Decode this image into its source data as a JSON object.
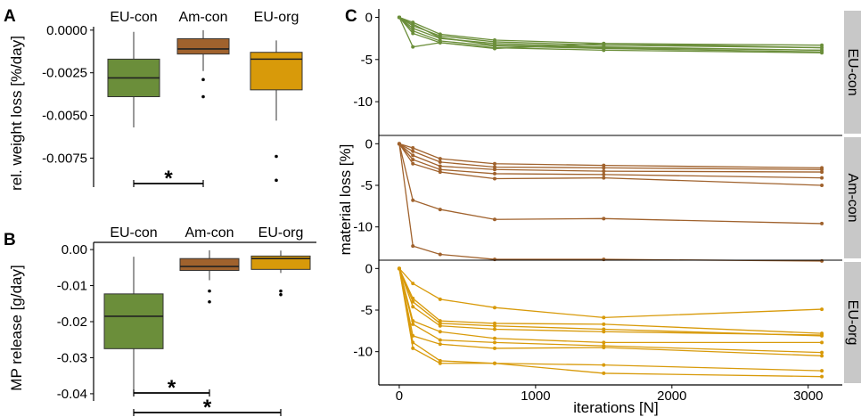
{
  "panels": {
    "A": {
      "label": "A",
      "ylabel": "rel. weight loss [%/day]",
      "categories": [
        "EU-con",
        "Am-con",
        "EU-org"
      ],
      "colors": [
        "#6b8e3a",
        "#a0622d",
        "#d89a0a"
      ],
      "yticks": [
        "0.0000",
        "-0.0025",
        "-0.0050",
        "-0.0075"
      ],
      "significance": [
        "*"
      ]
    },
    "B": {
      "label": "B",
      "ylabel": "MP release [g/day]",
      "categories": [
        "EU-con",
        "Am-con",
        "EU-org"
      ],
      "colors": [
        "#6b8e3a",
        "#a0622d",
        "#d89a0a"
      ],
      "yticks": [
        "0.00",
        "-0.01",
        "-0.02",
        "-0.03",
        "-0.04"
      ],
      "significance": [
        "*",
        "*"
      ]
    },
    "C": {
      "label": "C",
      "ylabel": "material loss [%]",
      "xlabel": "iterations [N]",
      "xticks": [
        "0",
        "1000",
        "2000",
        "3000"
      ],
      "yticks": [
        "0",
        "-5",
        "-10"
      ],
      "facets": [
        "EU-con",
        "Am-con",
        "EU-org"
      ],
      "colors": [
        "#6b8e3a",
        "#a0622d",
        "#d89a0a"
      ],
      "strip_color": "#c8c8c8"
    }
  },
  "chart_data": [
    {
      "type": "box",
      "panel": "A",
      "ylabel": "rel. weight loss [%/day]",
      "ylim": [
        -0.0092,
        0.0002
      ],
      "categories": [
        "EU-con",
        "Am-con",
        "EU-org"
      ],
      "boxes": [
        {
          "name": "EU-con",
          "whisker_low": -0.0057,
          "q1": -0.0039,
          "median": -0.0028,
          "q3": -0.0017,
          "whisker_high": -0.0001,
          "outliers": []
        },
        {
          "name": "Am-con",
          "whisker_low": -0.0024,
          "q1": -0.0014,
          "median": -0.0011,
          "q3": -0.0005,
          "whisker_high": 0.0,
          "outliers": [
            -0.0029,
            -0.0039
          ]
        },
        {
          "name": "EU-org",
          "whisker_low": -0.0053,
          "q1": -0.0035,
          "median": -0.0017,
          "q3": -0.0013,
          "whisker_high": -0.0006,
          "outliers": [
            -0.0074,
            -0.0088
          ]
        }
      ],
      "significance": [
        {
          "groups": [
            "EU-con",
            "Am-con"
          ],
          "label": "*"
        }
      ]
    },
    {
      "type": "box",
      "panel": "B",
      "ylabel": "MP release [g/day]",
      "ylim": [
        -0.042,
        0.002
      ],
      "categories": [
        "EU-con",
        "Am-con",
        "EU-org"
      ],
      "boxes": [
        {
          "name": "EU-con",
          "whisker_low": -0.039,
          "q1": -0.0275,
          "median": -0.0185,
          "q3": -0.0123,
          "whisker_high": -0.002,
          "outliers": []
        },
        {
          "name": "Am-con",
          "whisker_low": -0.0085,
          "q1": -0.0058,
          "median": -0.0047,
          "q3": -0.0025,
          "whisker_high": -0.0002,
          "outliers": [
            -0.0115,
            -0.0145
          ]
        },
        {
          "name": "EU-org",
          "whisker_low": -0.0065,
          "q1": -0.0055,
          "median": -0.0025,
          "q3": -0.0018,
          "whisker_high": -0.0003,
          "outliers": [
            -0.0115,
            -0.0125
          ]
        }
      ],
      "significance": [
        {
          "groups": [
            "EU-con",
            "Am-con"
          ],
          "label": "*"
        },
        {
          "groups": [
            "EU-con",
            "EU-org"
          ],
          "label": "*"
        }
      ]
    },
    {
      "type": "line",
      "panel": "C",
      "xlabel": "iterations [N]",
      "ylabel": "material loss [%]",
      "xlim": [
        -150,
        3250
      ],
      "ylim": [
        -14,
        1
      ],
      "x": [
        0,
        100,
        300,
        700,
        1500,
        3100
      ],
      "facets": [
        {
          "name": "EU-con",
          "series": [
            [
              0,
              -0.6,
              -2.0,
              -2.7,
              -3.1,
              -3.3
            ],
            [
              0,
              -1.0,
              -2.2,
              -2.9,
              -3.3,
              -3.6
            ],
            [
              0,
              -1.3,
              -2.5,
              -3.1,
              -3.5,
              -3.9
            ],
            [
              0,
              -1.6,
              -2.8,
              -3.4,
              -3.7,
              -4.1
            ],
            [
              0,
              -1.9,
              -3.0,
              -3.6,
              -3.9,
              -4.2
            ],
            [
              0,
              -3.5,
              -3.0,
              -3.7,
              -3.1,
              -3.6
            ],
            [
              0,
              -0.8,
              -2.4,
              -3.3,
              -3.6,
              -3.9
            ]
          ]
        },
        {
          "name": "Am-con",
          "series": [
            [
              0,
              -0.5,
              -1.8,
              -2.4,
              -2.6,
              -2.9
            ],
            [
              0,
              -0.9,
              -2.2,
              -2.8,
              -2.9,
              -3.1
            ],
            [
              0,
              -1.4,
              -2.7,
              -3.1,
              -3.3,
              -3.4
            ],
            [
              0,
              -1.9,
              -3.1,
              -3.6,
              -3.7,
              -4.1
            ],
            [
              0,
              -2.4,
              -3.4,
              -4.2,
              -4.1,
              -5.0
            ],
            [
              0,
              -6.8,
              -7.9,
              -9.1,
              -9.0,
              -9.6
            ],
            [
              0,
              -12.3,
              -13.3,
              -13.9,
              -13.9,
              -14.1
            ]
          ]
        },
        {
          "name": "EU-org",
          "series": [
            [
              0,
              -1.8,
              -3.7,
              -4.7,
              -5.9,
              -4.9
            ],
            [
              0,
              -3.6,
              -6.3,
              -6.6,
              -6.7,
              -7.8
            ],
            [
              0,
              -4.0,
              -6.6,
              -6.9,
              -7.3,
              -8.1
            ],
            [
              0,
              -4.6,
              -6.9,
              -7.3,
              -7.6,
              -8.0
            ],
            [
              0,
              -6.3,
              -7.6,
              -8.4,
              -8.9,
              -8.9
            ],
            [
              0,
              -6.7,
              -8.6,
              -8.9,
              -9.3,
              -10.1
            ],
            [
              0,
              -8.1,
              -9.1,
              -9.6,
              -9.5,
              -10.5
            ],
            [
              0,
              -8.9,
              -11.1,
              -11.4,
              -11.6,
              -12.3
            ],
            [
              0,
              -9.6,
              -11.4,
              -11.4,
              -12.6,
              -13.0
            ]
          ]
        }
      ]
    }
  ]
}
